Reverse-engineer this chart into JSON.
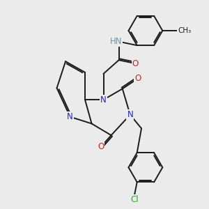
{
  "bg": "#ebebeb",
  "bond_color": "#1a1a1a",
  "bond_width": 1.4,
  "dbo": 0.055,
  "atom_colors": {
    "N": "#2020cc",
    "O": "#cc2020",
    "Cl": "#22aa22",
    "NH": "#6699aa",
    "C": "#1a1a1a"
  },
  "fs": 8.5
}
